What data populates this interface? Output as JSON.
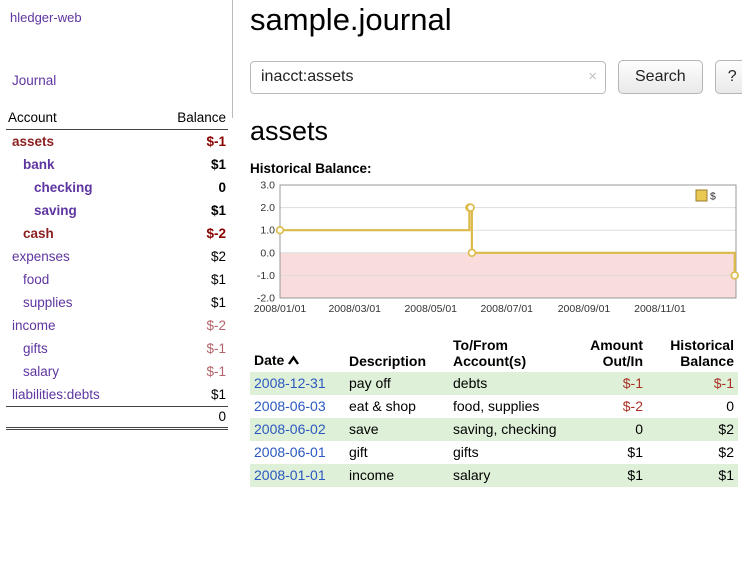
{
  "colors": {
    "link_purple": "#5e35a1",
    "link_blue": "#2a58c0",
    "negative_strong": "#8b0000",
    "negative_name": "#8b1f1f",
    "negative_soft": "#b4636b",
    "negative_table": "#a93226",
    "row_stripe_green": "#dff0d8",
    "chart_line_gold": "#dcba4a",
    "chart_negative_region": "#f9dcdc"
  },
  "icons": {
    "clear": "×",
    "sort_asc": "chevron-up",
    "legend_swatch": "gold-square"
  },
  "app": {
    "brand": "hledger-web",
    "journal_link": "Journal"
  },
  "sidebar": {
    "header": {
      "account": "Account",
      "balance": "Balance"
    },
    "accounts": [
      {
        "name": "assets",
        "balance": "$-1",
        "indent": 1,
        "bold": true,
        "name_negative": true,
        "balance_negative": true
      },
      {
        "name": "bank",
        "balance": "$1",
        "indent": 2,
        "bold": true,
        "name_negative": false,
        "balance_negative": false
      },
      {
        "name": "checking",
        "balance": "0",
        "indent": 3,
        "bold": true,
        "name_negative": false,
        "balance_negative": false
      },
      {
        "name": "saving",
        "balance": "$1",
        "indent": 3,
        "bold": true,
        "name_negative": false,
        "balance_negative": false
      },
      {
        "name": "cash",
        "balance": "$-2",
        "indent": 2,
        "bold": true,
        "name_negative": true,
        "balance_negative": true
      },
      {
        "name": "expenses",
        "balance": "$2",
        "indent": 1,
        "bold": false,
        "name_negative": false,
        "balance_negative": false
      },
      {
        "name": "food",
        "balance": "$1",
        "indent": 2,
        "bold": false,
        "name_negative": false,
        "balance_negative": false
      },
      {
        "name": "supplies",
        "balance": "$1",
        "indent": 2,
        "bold": false,
        "name_negative": false,
        "balance_negative": false
      },
      {
        "name": "income",
        "balance": "$-2",
        "indent": 1,
        "bold": false,
        "name_negative": false,
        "balance_negative": true
      },
      {
        "name": "gifts",
        "balance": "$-1",
        "indent": 2,
        "bold": false,
        "name_negative": false,
        "balance_negative": true
      },
      {
        "name": "salary",
        "balance": "$-1",
        "indent": 2,
        "bold": false,
        "name_negative": false,
        "balance_negative": true
      },
      {
        "name": "liabilities:debts",
        "balance": "$1",
        "indent": 1,
        "bold": false,
        "name_negative": false,
        "balance_negative": false
      }
    ],
    "total": "0"
  },
  "main": {
    "title": "sample.journal",
    "search": {
      "value": "inacct:assets",
      "clear": "×",
      "button": "Search",
      "help": "?"
    },
    "account_heading": "assets",
    "chart_label": "Historical Balance:"
  },
  "chart_data": {
    "type": "line",
    "subtype": "step-after",
    "title": "Historical Balance",
    "series": [
      {
        "name": "$",
        "points": [
          {
            "date": "2008-01-01",
            "value": 1
          },
          {
            "date": "2008-06-01",
            "value": 2
          },
          {
            "date": "2008-06-02",
            "value": 2
          },
          {
            "date": "2008-06-03",
            "value": 0
          },
          {
            "date": "2008-12-31",
            "value": -1
          }
        ]
      }
    ],
    "ylim": [
      -2,
      3
    ],
    "yticks": [
      3.0,
      2.0,
      1.0,
      0.0,
      -1.0,
      -2.0
    ],
    "xticks": [
      "2008/01/01",
      "2008/03/01",
      "2008/05/01",
      "2008/07/01",
      "2008/09/01",
      "2008/11/01"
    ],
    "x_range": [
      "2008-01-01",
      "2009-01-01"
    ],
    "grid": true,
    "legend_position": "top-right",
    "legend": [
      {
        "label": "$",
        "color": "#e9c952"
      }
    ],
    "line_color": "#dcba4a",
    "negative_region_color": "#f9dcdc"
  },
  "register": {
    "headers": {
      "date": "Date",
      "description": "Description",
      "accounts": "To/From Account(s)",
      "amount": "Amount Out/In",
      "balance": "Historical Balance"
    },
    "rows": [
      {
        "date": "2008-12-31",
        "description": "pay off",
        "accounts": "debts",
        "amount": "$-1",
        "balance": "$-1",
        "amount_negative": true,
        "balance_negative": true
      },
      {
        "date": "2008-06-03",
        "description": "eat & shop",
        "accounts": "food, supplies",
        "amount": "$-2",
        "balance": "0",
        "amount_negative": true,
        "balance_negative": false
      },
      {
        "date": "2008-06-02",
        "description": "save",
        "accounts": "saving, checking",
        "amount": "0",
        "balance": "$2",
        "amount_negative": false,
        "balance_negative": false
      },
      {
        "date": "2008-06-01",
        "description": "gift",
        "accounts": "gifts",
        "amount": "$1",
        "balance": "$2",
        "amount_negative": false,
        "balance_negative": false
      },
      {
        "date": "2008-01-01",
        "description": "income",
        "accounts": "salary",
        "amount": "$1",
        "balance": "$1",
        "amount_negative": false,
        "balance_negative": false
      }
    ]
  }
}
